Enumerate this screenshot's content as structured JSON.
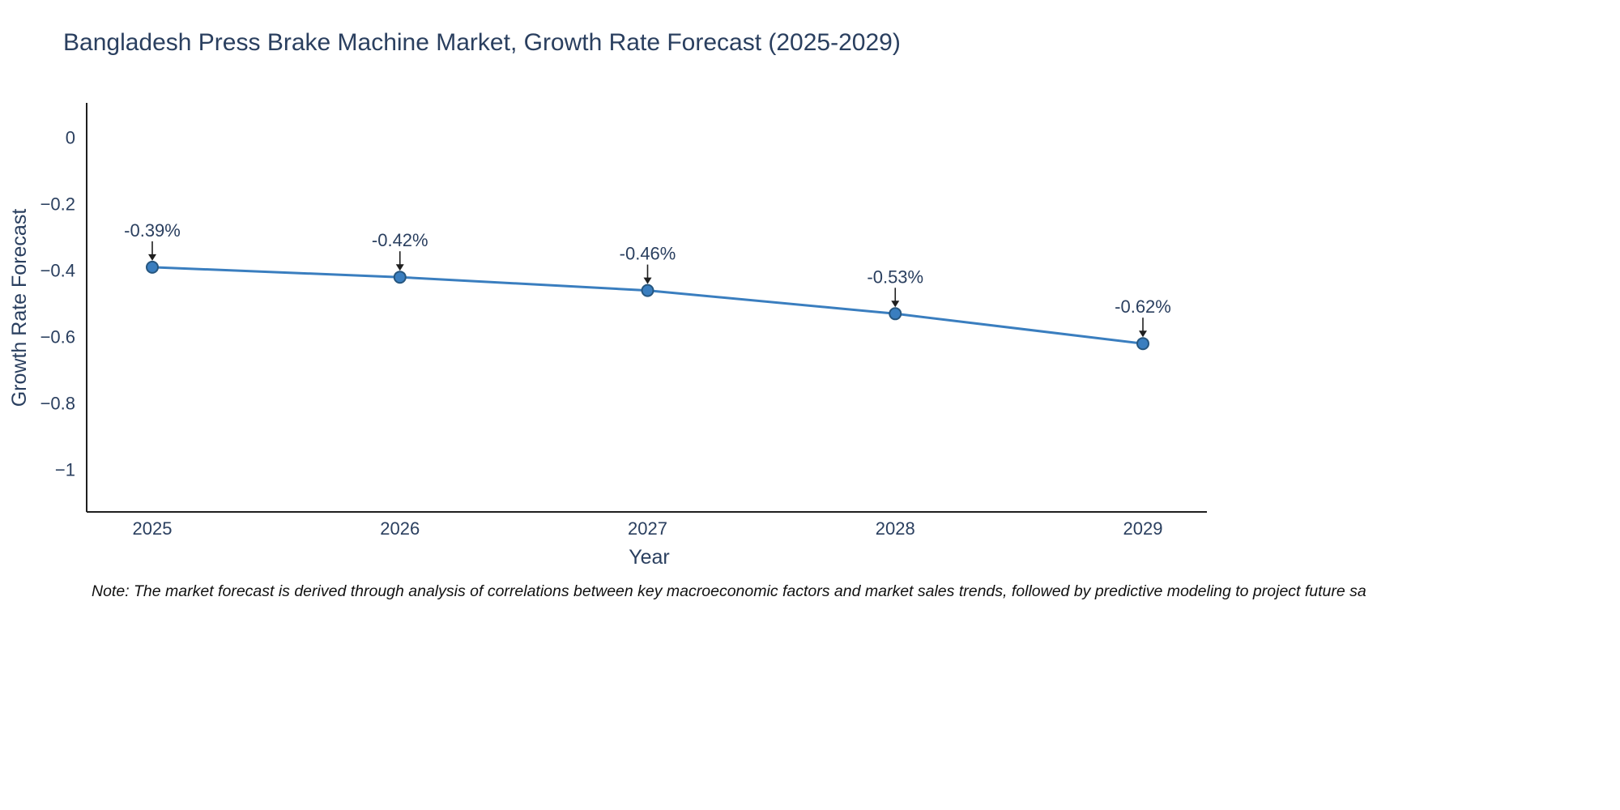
{
  "page": {
    "title": "Bangladesh Press Brake Machine Market, Growth Rate Forecast (2025-2029)",
    "note": "Note: The market forecast is derived through analysis of correlations between key macroeconomic factors and market sales trends, followed by predictive modeling to project future sa"
  },
  "chart_data": {
    "type": "line",
    "title": "Bangladesh Press Brake Machine Market, Growth Rate Forecast (2025-2029)",
    "xlabel": "Year",
    "ylabel": "Growth Rate Forecast",
    "x": [
      2025,
      2026,
      2027,
      2028,
      2029
    ],
    "y": [
      -0.39,
      -0.42,
      -0.46,
      -0.53,
      -0.62
    ],
    "point_labels": [
      "-0.39%",
      "-0.42%",
      "-0.46%",
      "-0.53%",
      "-0.62%"
    ],
    "xtick_labels": [
      "2025",
      "2026",
      "2027",
      "2028",
      "2029"
    ],
    "ytick_values": [
      0,
      -0.2,
      -0.4,
      -0.6,
      -0.8,
      -1
    ],
    "ytick_labels": [
      "0",
      "−0.2",
      "−0.4",
      "−0.6",
      "−0.8",
      "−1"
    ],
    "ylim": [
      -1.13,
      0.11
    ],
    "grid": false,
    "legend": "none",
    "line_color": "#3a7ebf",
    "marker_edge_color": "#26567f",
    "text_color": "#2a3f5f",
    "axis_color": "#1f1f1f",
    "annotation_arrow_color": "#1f1f1f"
  }
}
